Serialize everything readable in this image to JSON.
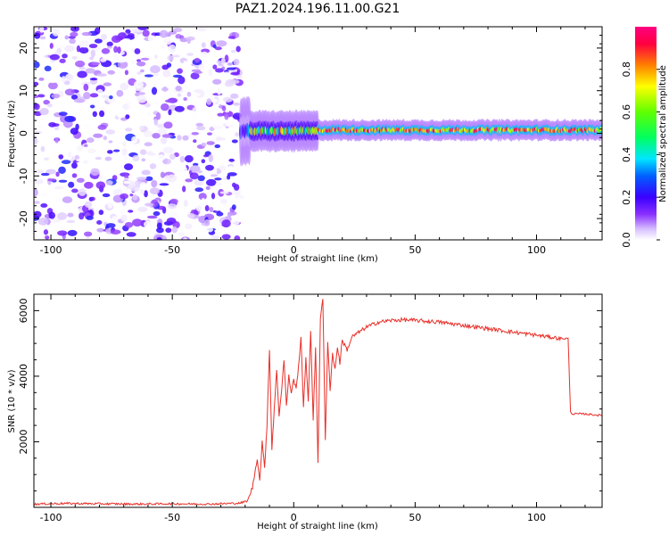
{
  "title": "PAZ1.2024.196.11.00.G21",
  "chart_data": [
    {
      "type": "heatmap",
      "xlabel": "Height of straight line (km)",
      "ylabel": "Frequency (Hz)",
      "xlim": [
        -107,
        127
      ],
      "ylim": [
        -25,
        25
      ],
      "xticks": [
        -100,
        -50,
        0,
        50,
        100
      ],
      "yticks": [
        -20,
        -10,
        0,
        10,
        20
      ],
      "colorbar": {
        "label": "Normalized spectral amplitude",
        "range": [
          0,
          1
        ],
        "ticks": [
          "0.0",
          "0.2",
          "0.4",
          "0.6",
          "0.8"
        ],
        "colors": [
          "#ffffff",
          "#c8a0ff",
          "#6a00ff",
          "#0000ff",
          "#00e5ff",
          "#00ff40",
          "#ffff00",
          "#ff8000",
          "#ff0040",
          "#ff00a0"
        ]
      },
      "regions": [
        {
          "x": [
            -107,
            -22
          ],
          "freq": [
            -25,
            25
          ],
          "amplitude": [
            0.0,
            0.25
          ],
          "pattern": "scattered noise"
        },
        {
          "x": [
            -22,
            -18
          ],
          "freq": [
            -2,
            3
          ],
          "amplitude": [
            0.1,
            0.35
          ],
          "pattern": "transition"
        },
        {
          "x": [
            -18,
            10
          ],
          "freq": [
            -1,
            2
          ],
          "amplitude": [
            0.3,
            0.9
          ],
          "pattern": "narrow band"
        },
        {
          "x": [
            10,
            127
          ],
          "freq": [
            0,
            1.5
          ],
          "amplitude": [
            0.6,
            1.0
          ],
          "pattern": "narrow band"
        }
      ]
    },
    {
      "type": "line",
      "xlabel": "Height of straight line (km)",
      "ylabel": "SNR (10 * v/v)",
      "xlim": [
        -107,
        127
      ],
      "ylim": [
        0,
        6500
      ],
      "xticks": [
        -100,
        -50,
        0,
        50,
        100
      ],
      "yticks": [
        2000,
        4000,
        6000
      ],
      "color": "#e8302a",
      "x": [
        -107,
        -95,
        -80,
        -65,
        -50,
        -35,
        -22,
        -19,
        -17,
        -15,
        -14,
        -13,
        -12,
        -11,
        -10,
        -9,
        -8,
        -7,
        -6,
        -5,
        -4,
        -3,
        -2,
        -1,
        0,
        1,
        2,
        3,
        4,
        5,
        6,
        7,
        8,
        9,
        10,
        11,
        12,
        13,
        14,
        15,
        16,
        17,
        18,
        19,
        20,
        22,
        24,
        26,
        28,
        30,
        35,
        40,
        45,
        50,
        60,
        70,
        80,
        90,
        100,
        105,
        110,
        113,
        114,
        115,
        120,
        127
      ],
      "y": [
        100,
        120,
        110,
        100,
        110,
        100,
        130,
        200,
        600,
        1500,
        800,
        2000,
        1200,
        2500,
        4800,
        1800,
        3000,
        4200,
        2800,
        3600,
        4500,
        3100,
        4000,
        3500,
        3900,
        3600,
        4300,
        5200,
        3000,
        4600,
        3200,
        5400,
        2700,
        4900,
        1300,
        5800,
        6400,
        2000,
        5000,
        3600,
        4700,
        4200,
        4900,
        4400,
        5100,
        4800,
        5200,
        5300,
        5400,
        5500,
        5650,
        5700,
        5720,
        5700,
        5650,
        5550,
        5450,
        5350,
        5250,
        5200,
        5150,
        5150,
        2900,
        2850,
        2850,
        2800
      ]
    }
  ]
}
